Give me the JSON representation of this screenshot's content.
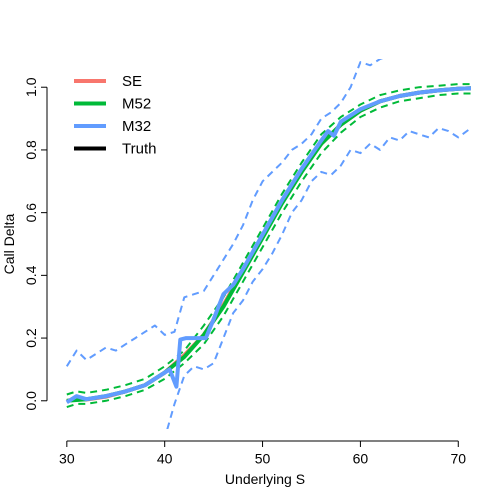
{
  "chart_data": {
    "type": "line",
    "title": "",
    "xlabel": "Underlying S",
    "ylabel": "Call Delta",
    "xlim": [
      29.2,
      71.3
    ],
    "ylim": [
      -0.09,
      1.09
    ],
    "xticks": [
      "30",
      "40",
      "50",
      "60",
      "70"
    ],
    "yticks": [
      "0.0",
      "0.2",
      "0.4",
      "0.6",
      "0.8",
      "1.0"
    ],
    "grid": false,
    "legend_position": "top-left",
    "colors": {
      "SE": "#f8766d",
      "M52": "#00ba38",
      "M32": "#619cff",
      "Truth": "#000000"
    },
    "legend": [
      "SE",
      "M52",
      "M32",
      "Truth"
    ],
    "series": [
      {
        "name": "Truth",
        "x": [
          30,
          32,
          34,
          36,
          38,
          40,
          42,
          44,
          46,
          48,
          50,
          52,
          54,
          56,
          58,
          60,
          62,
          64,
          66,
          68,
          70,
          71.3
        ],
        "values": [
          0.0,
          0.005,
          0.015,
          0.03,
          0.05,
          0.09,
          0.14,
          0.21,
          0.3,
          0.41,
          0.52,
          0.63,
          0.73,
          0.82,
          0.88,
          0.925,
          0.955,
          0.972,
          0.983,
          0.99,
          0.995,
          0.997
        ]
      },
      {
        "name": "SE",
        "x": [
          30,
          31,
          32,
          34,
          36,
          38,
          40,
          42,
          44,
          46,
          48,
          50,
          52,
          54,
          56,
          58,
          60,
          62,
          64,
          66,
          68,
          70,
          71.3
        ],
        "values": [
          -0.003,
          0.012,
          0.004,
          0.013,
          0.03,
          0.05,
          0.09,
          0.145,
          0.21,
          0.305,
          0.415,
          0.525,
          0.635,
          0.735,
          0.82,
          0.88,
          0.925,
          0.955,
          0.972,
          0.983,
          0.99,
          0.995,
          0.997
        ]
      },
      {
        "name": "M52",
        "x": [
          30,
          32,
          34,
          36,
          38,
          40,
          42,
          44,
          46,
          48,
          50,
          52,
          54,
          56,
          58,
          60,
          62,
          64,
          66,
          68,
          70,
          71.3
        ],
        "values": [
          0.0,
          0.005,
          0.015,
          0.03,
          0.05,
          0.09,
          0.14,
          0.21,
          0.3,
          0.41,
          0.52,
          0.63,
          0.73,
          0.82,
          0.88,
          0.925,
          0.955,
          0.972,
          0.983,
          0.99,
          0.995,
          0.997
        ]
      },
      {
        "name": "M52 upper",
        "x": [
          30,
          31,
          32,
          34,
          36,
          38,
          40,
          42,
          44,
          46,
          48,
          50,
          52,
          54,
          56,
          58,
          60,
          62,
          64,
          66,
          68,
          70,
          71.3
        ],
        "values": [
          0.02,
          0.03,
          0.025,
          0.035,
          0.05,
          0.07,
          0.11,
          0.16,
          0.24,
          0.33,
          0.44,
          0.55,
          0.66,
          0.76,
          0.85,
          0.905,
          0.945,
          0.975,
          0.99,
          1.0,
          1.005,
          1.01,
          1.01
        ]
      },
      {
        "name": "M52 lower",
        "x": [
          30,
          31,
          32,
          34,
          36,
          38,
          40,
          42,
          44,
          46,
          48,
          50,
          52,
          54,
          56,
          58,
          60,
          62,
          64,
          66,
          68,
          70,
          71.3
        ],
        "values": [
          -0.02,
          -0.01,
          -0.01,
          0.0,
          0.015,
          0.035,
          0.07,
          0.12,
          0.18,
          0.27,
          0.38,
          0.49,
          0.6,
          0.7,
          0.79,
          0.855,
          0.905,
          0.935,
          0.955,
          0.965,
          0.975,
          0.98,
          0.98
        ]
      },
      {
        "name": "M32",
        "x": [
          30,
          31,
          32,
          34,
          36,
          38,
          39.5,
          40.5,
          41.2,
          41.6,
          42.2,
          43.2,
          44.2,
          45,
          46,
          47,
          48,
          50,
          52,
          54,
          56,
          56.7,
          57.3,
          58,
          60,
          62,
          64,
          66,
          68,
          70,
          71.3
        ],
        "values": [
          -0.005,
          0.015,
          0.005,
          0.015,
          0.03,
          0.05,
          0.08,
          0.1,
          0.045,
          0.195,
          0.2,
          0.2,
          0.2,
          0.26,
          0.34,
          0.37,
          0.42,
          0.53,
          0.64,
          0.74,
          0.83,
          0.86,
          0.845,
          0.89,
          0.93,
          0.955,
          0.972,
          0.983,
          0.99,
          0.995,
          0.997
        ]
      },
      {
        "name": "M32 upper",
        "x": [
          30,
          31,
          32,
          33,
          34,
          35,
          36,
          37,
          38,
          39,
          40,
          41,
          42,
          43,
          44,
          45,
          46,
          47,
          48,
          49,
          50,
          51,
          52,
          53,
          54,
          55,
          56,
          57,
          58,
          59,
          60,
          61,
          62,
          63
        ],
        "values": [
          0.11,
          0.16,
          0.13,
          0.15,
          0.17,
          0.16,
          0.18,
          0.2,
          0.22,
          0.24,
          0.21,
          0.22,
          0.33,
          0.34,
          0.35,
          0.4,
          0.45,
          0.5,
          0.56,
          0.64,
          0.7,
          0.73,
          0.76,
          0.8,
          0.82,
          0.85,
          0.9,
          0.92,
          0.95,
          1.0,
          1.08,
          1.07,
          1.09,
          1.1
        ]
      },
      {
        "name": "M32 lower",
        "x": [
          30,
          31,
          32,
          33,
          34,
          35,
          36,
          37,
          38,
          39,
          40,
          41,
          42,
          43,
          44,
          45,
          46,
          47,
          48,
          49,
          50,
          51,
          52,
          53,
          54,
          55,
          56,
          57,
          58,
          59,
          60,
          61,
          62,
          63,
          64,
          65,
          66,
          67,
          68,
          69,
          70,
          71.3
        ],
        "values": [
          -0.12,
          -0.15,
          -0.13,
          -0.14,
          -0.15,
          -0.15,
          -0.13,
          -0.12,
          -0.1,
          -0.1,
          -0.12,
          -0.01,
          0.08,
          0.11,
          0.1,
          0.12,
          0.2,
          0.28,
          0.32,
          0.38,
          0.42,
          0.47,
          0.53,
          0.6,
          0.64,
          0.7,
          0.73,
          0.72,
          0.75,
          0.8,
          0.79,
          0.82,
          0.8,
          0.84,
          0.83,
          0.86,
          0.85,
          0.84,
          0.87,
          0.86,
          0.84,
          0.87
        ]
      }
    ]
  }
}
